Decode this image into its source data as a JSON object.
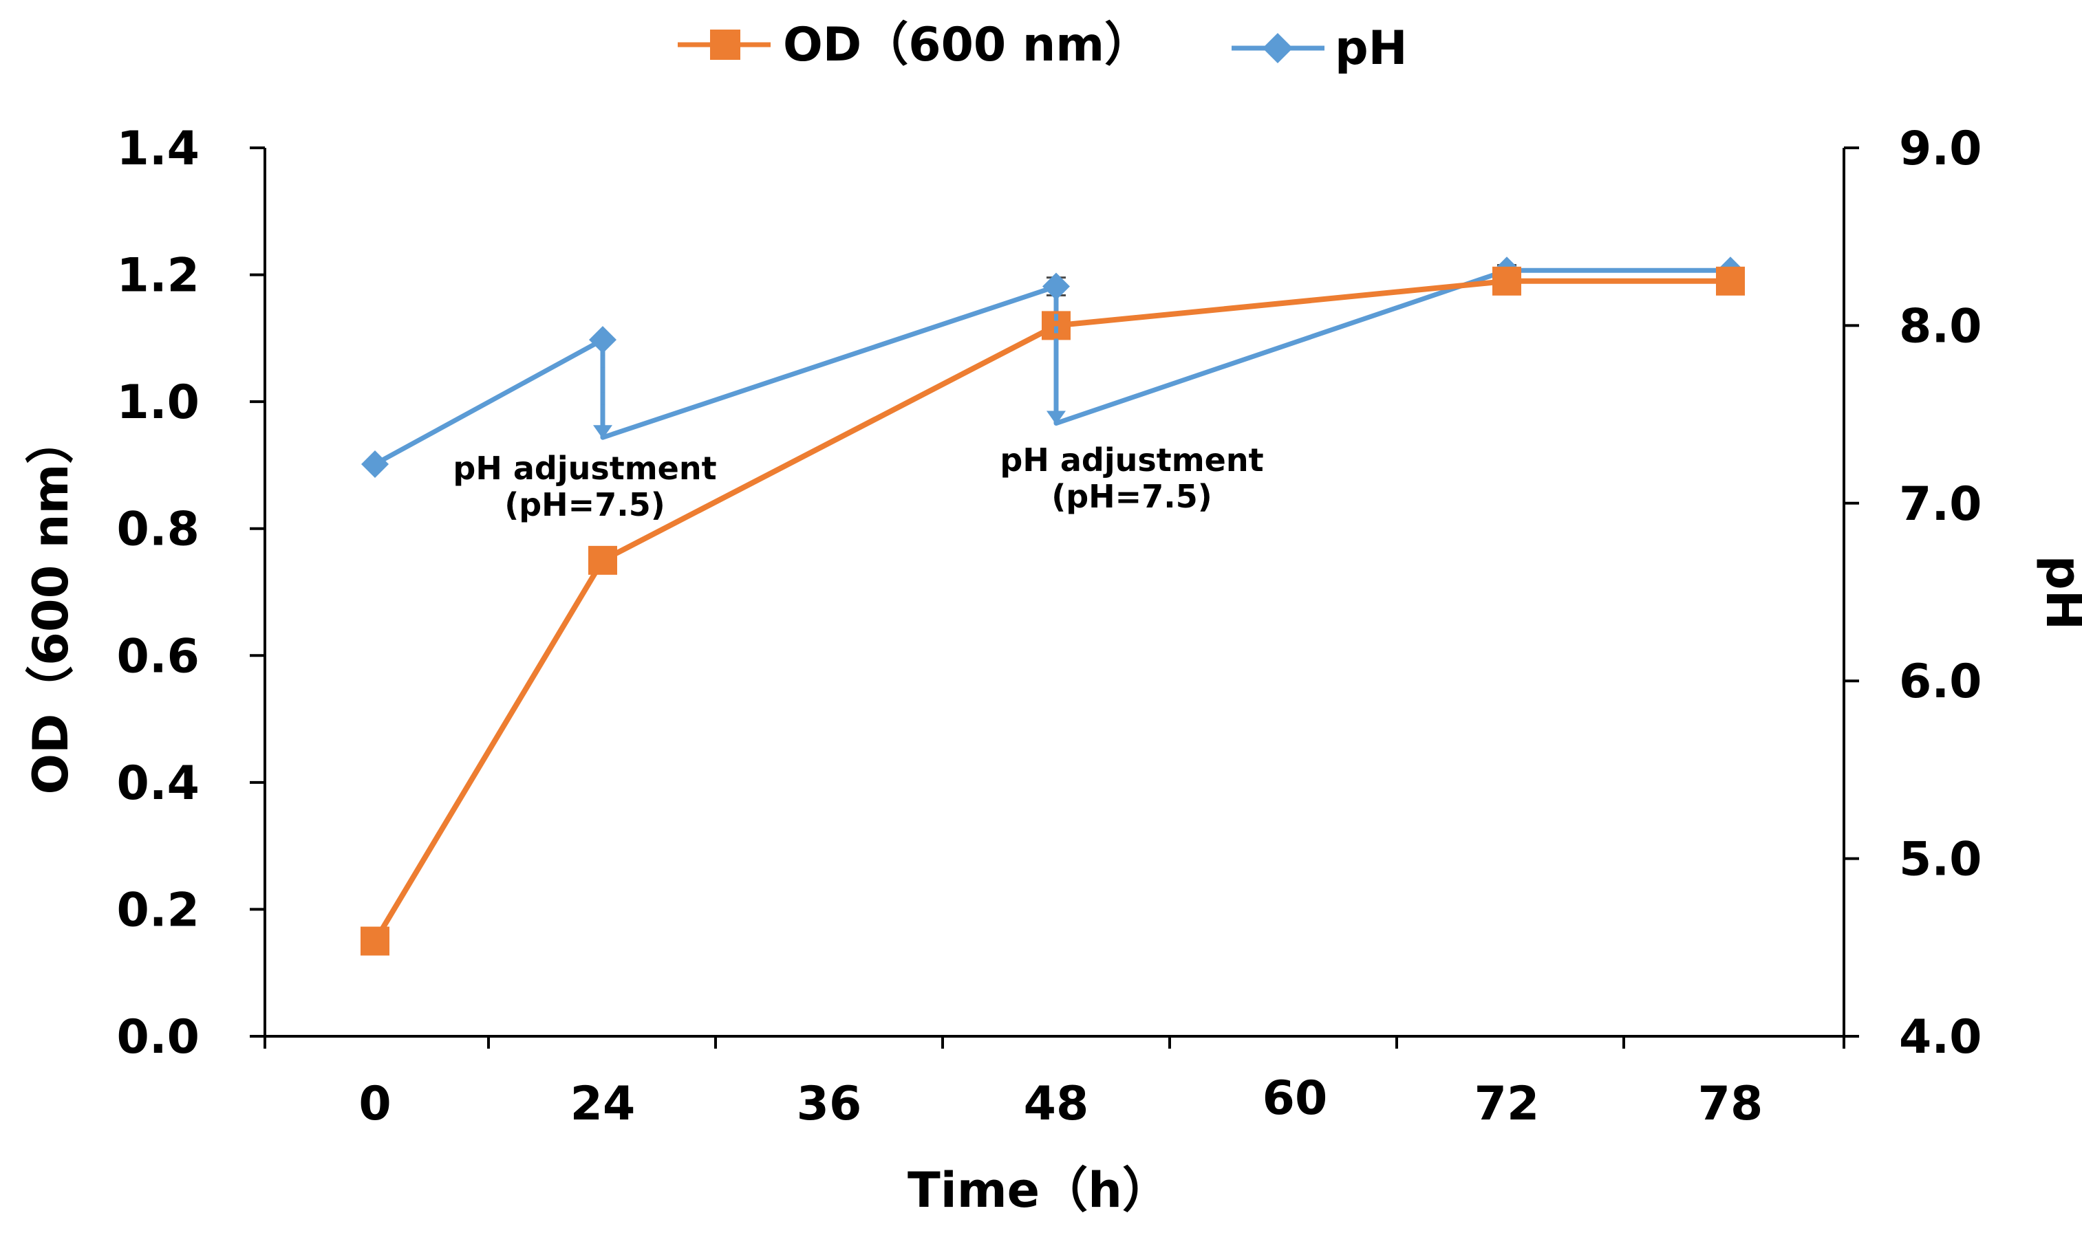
{
  "chart_data": {
    "type": "line",
    "x_categories": [
      "0",
      "24",
      "36",
      "48",
      "60",
      "72",
      "78"
    ],
    "xlabel": "Time（h）",
    "ylabel_left": "OD（600 nm）",
    "ylabel_right": "pH",
    "ylim_left": [
      0.0,
      1.4
    ],
    "yticks_left": [
      "0.0",
      "0.2",
      "0.4",
      "0.6",
      "0.8",
      "1.0",
      "1.2",
      "1.4"
    ],
    "ylim_right": [
      4.0,
      9.0
    ],
    "yticks_right": [
      "4.0",
      "5.0",
      "6.0",
      "7.0",
      "8.0",
      "9.0"
    ],
    "legend_position": "top",
    "series": [
      {
        "name": "OD（600 nm）",
        "axis": "left",
        "color": "#ED7D31",
        "marker": "square",
        "points": [
          {
            "x": "0",
            "y": 0.15
          },
          {
            "x": "24",
            "y": 0.75
          },
          {
            "x": "48",
            "y": 1.12
          },
          {
            "x": "72",
            "y": 1.19
          },
          {
            "x": "78",
            "y": 1.19
          }
        ]
      },
      {
        "name": "pH",
        "axis": "right",
        "color": "#5B9BD5",
        "marker": "diamond",
        "points": [
          {
            "x": "0",
            "y": 7.22
          },
          {
            "x": "24",
            "y": 7.92
          },
          {
            "x": "24",
            "y": 7.37
          },
          {
            "x": "48",
            "y": 8.22
          },
          {
            "x": "48",
            "y": 7.45
          },
          {
            "x": "72",
            "y": 8.31
          },
          {
            "x": "78",
            "y": 8.31
          }
        ],
        "error_bars": [
          {
            "x": "48",
            "y": 8.22,
            "err": 0.05
          },
          {
            "x": "72",
            "y": 8.31,
            "err": 0.03
          }
        ]
      }
    ],
    "annotations": [
      {
        "x": "24",
        "from": 7.92,
        "to": 7.37,
        "line1": "pH adjustment",
        "line2": "(pH=7.5)"
      },
      {
        "x": "48",
        "from": 8.22,
        "to": 7.45,
        "line1": "pH adjustment",
        "line2": "(pH=7.5)"
      }
    ]
  }
}
